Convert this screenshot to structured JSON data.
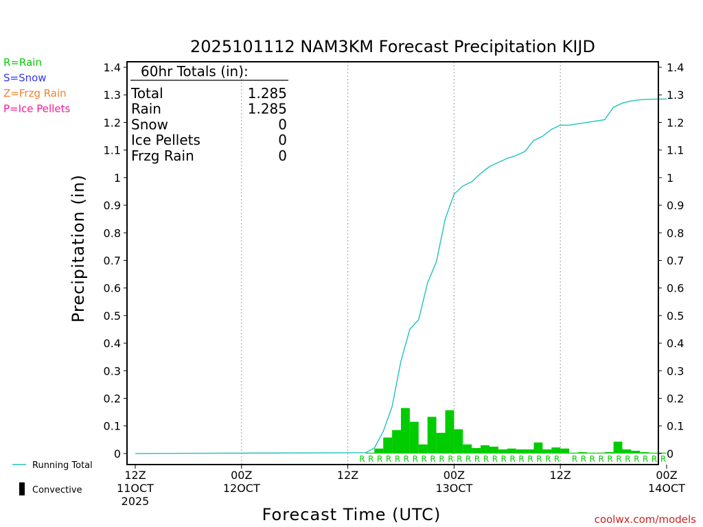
{
  "colors": {
    "rain": "#00cc00",
    "snow": "#3333ff",
    "frzg": "#f08030",
    "ice": "#ff1493",
    "running_total": "#20c0c0",
    "axis": "#000000",
    "grid": "#999999",
    "credit": "#cc2020"
  },
  "legend_types": [
    {
      "text": "R=Rain",
      "color": "#00cc00"
    },
    {
      "text": "S=Snow",
      "color": "#3333ff"
    },
    {
      "text": "Z=Frzg Rain",
      "color": "#f08030"
    },
    {
      "text": "P=Ice Pellets",
      "color": "#ff1493"
    }
  ],
  "legend_bottom": {
    "running_total": "Running Total",
    "convective": "Convective"
  },
  "totals": {
    "header": "60hr Totals (in):",
    "rows": [
      {
        "label": "Total",
        "value": "1.285"
      },
      {
        "label": "Rain",
        "value": "1.285"
      },
      {
        "label": "Snow",
        "value": "0"
      },
      {
        "label": "Ice Pellets",
        "value": "0"
      },
      {
        "label": "Frzg Rain",
        "value": "0"
      }
    ]
  },
  "credit": "coolwx.com/models",
  "chart_data": {
    "type": "bar",
    "title": "2025101112 NAM3KM Forecast Precipitation KIJD",
    "xlabel": "Forecast Time (UTC)",
    "ylabel": "Precipitation (in)",
    "xlim": [
      0,
      60
    ],
    "ylim": [
      -0.04,
      1.42
    ],
    "yticks": [
      0,
      0.1,
      0.2,
      0.3,
      0.4,
      0.5,
      0.6,
      0.7,
      0.8,
      0.9,
      1,
      1.1,
      1.2,
      1.3,
      1.4
    ],
    "ytick_labels": [
      "0",
      "0.1",
      "0.2",
      "0.3",
      "0.4",
      "0.5",
      "0.6",
      "0.7",
      "0.8",
      "0.9",
      "1",
      "1.1",
      "1.2",
      "1.3",
      "1.4"
    ],
    "xticks": [
      {
        "hour": 0,
        "lines": [
          "12Z",
          "11OCT",
          "2025"
        ]
      },
      {
        "hour": 12,
        "lines": [
          "00Z",
          "12OCT"
        ]
      },
      {
        "hour": 24,
        "lines": [
          "12Z"
        ]
      },
      {
        "hour": 36,
        "lines": [
          "00Z",
          "13OCT"
        ]
      },
      {
        "hour": 48,
        "lines": [
          "12Z"
        ]
      },
      {
        "hour": 60,
        "lines": [
          "00Z",
          "14OCT"
        ]
      }
    ],
    "gridlines_hours": [
      12,
      24,
      36,
      48
    ],
    "hourly_precip": {
      "start_hour": 1,
      "values": [
        0,
        0,
        0,
        0,
        0,
        0,
        0,
        0,
        0,
        0,
        0,
        0,
        0,
        0,
        0,
        0,
        0,
        0,
        0,
        0,
        0,
        0,
        0,
        0,
        0,
        0,
        0.003,
        0.018,
        0.058,
        0.085,
        0.165,
        0.115,
        0.033,
        0.133,
        0.075,
        0.157,
        0.088,
        0.033,
        0.02,
        0.03,
        0.025,
        0.015,
        0.018,
        0.015,
        0.015,
        0.04,
        0.015,
        0.022,
        0.018,
        0.003,
        0.005,
        0.003,
        0.003,
        0.005,
        0.043,
        0.015,
        0.01,
        0.005,
        0.003,
        0.003
      ]
    },
    "running_total": {
      "hours": [
        0,
        26,
        27,
        28,
        29,
        30,
        31,
        32,
        33,
        34,
        35,
        36,
        37,
        38,
        39,
        40,
        41,
        42,
        43,
        44,
        45,
        46,
        47,
        48,
        49,
        50,
        51,
        52,
        53,
        54,
        55,
        56,
        57,
        58,
        59,
        60
      ],
      "values": [
        0,
        0.003,
        0.02,
        0.08,
        0.17,
        0.335,
        0.45,
        0.485,
        0.618,
        0.695,
        0.85,
        0.94,
        0.97,
        0.985,
        1.015,
        1.04,
        1.055,
        1.07,
        1.08,
        1.095,
        1.135,
        1.15,
        1.175,
        1.19,
        1.19,
        1.195,
        1.2,
        1.205,
        1.21,
        1.255,
        1.27,
        1.278,
        1.282,
        1.284,
        1.285,
        1.285
      ]
    },
    "ptype": {
      "letter": "R",
      "hours": [
        26,
        27,
        28,
        29,
        30,
        31,
        32,
        33,
        34,
        35,
        36,
        37,
        38,
        39,
        40,
        41,
        42,
        43,
        44,
        45,
        46,
        47,
        48,
        50,
        51,
        52,
        53,
        54,
        55,
        56,
        57,
        58,
        59,
        60
      ]
    }
  }
}
